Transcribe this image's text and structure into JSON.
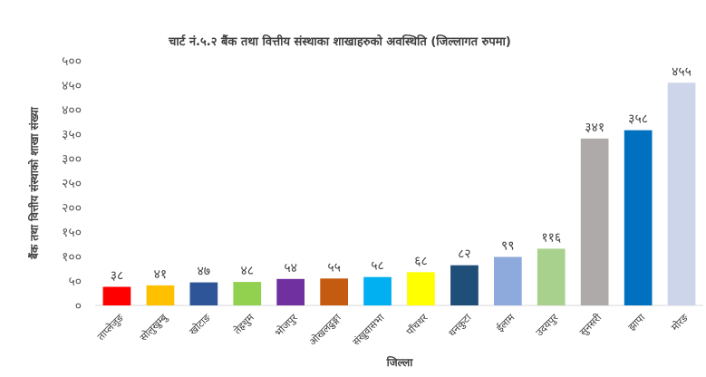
{
  "chart_data": {
    "type": "bar",
    "title": "चार्ट नं.५.२ बैंक तथा वित्तीय संस्थाका शाखाहरुको अवस्थिति (जिल्लागत रुपमा)",
    "xlabel": "जिल्ला",
    "ylabel": "बैंक तथा वित्तीय संस्थाको शाखा संख्या",
    "ylim": [
      0,
      500
    ],
    "grid": false,
    "legend": "none",
    "y_ticks": [
      "०",
      "५०",
      "१००",
      "१५०",
      "२००",
      "२५०",
      "३००",
      "३५०",
      "४००",
      "४५०",
      "५००"
    ],
    "categories": [
      "ताप्लेजुङ",
      "सोलुखुम्बु",
      "खोटाङ",
      "तेह्रथुम",
      "भोजपुर",
      "ओखलढुङ्गा",
      "संखुवासभा",
      "पाँचथर",
      "धनकुटा",
      "ईलाम",
      "उदयपुर",
      "सुनसरी",
      "झापा",
      "मोरङ"
    ],
    "values": [
      38,
      41,
      47,
      48,
      54,
      55,
      58,
      68,
      82,
      99,
      116,
      341,
      358,
      455
    ],
    "value_labels": [
      "३८",
      "४१",
      "४७",
      "४८",
      "५४",
      "५५",
      "५८",
      "६८",
      "८२",
      "९९",
      "११६",
      "३४१",
      "३५८",
      "४५५"
    ],
    "colors": [
      "#ff0000",
      "#ffc000",
      "#2e5597",
      "#92d050",
      "#7030a0",
      "#c55a11",
      "#00b0f0",
      "#ffff00",
      "#1f4e79",
      "#8ea9db",
      "#a9d18e",
      "#aeaaaa",
      "#0070c0",
      "#cdd5ea"
    ]
  }
}
